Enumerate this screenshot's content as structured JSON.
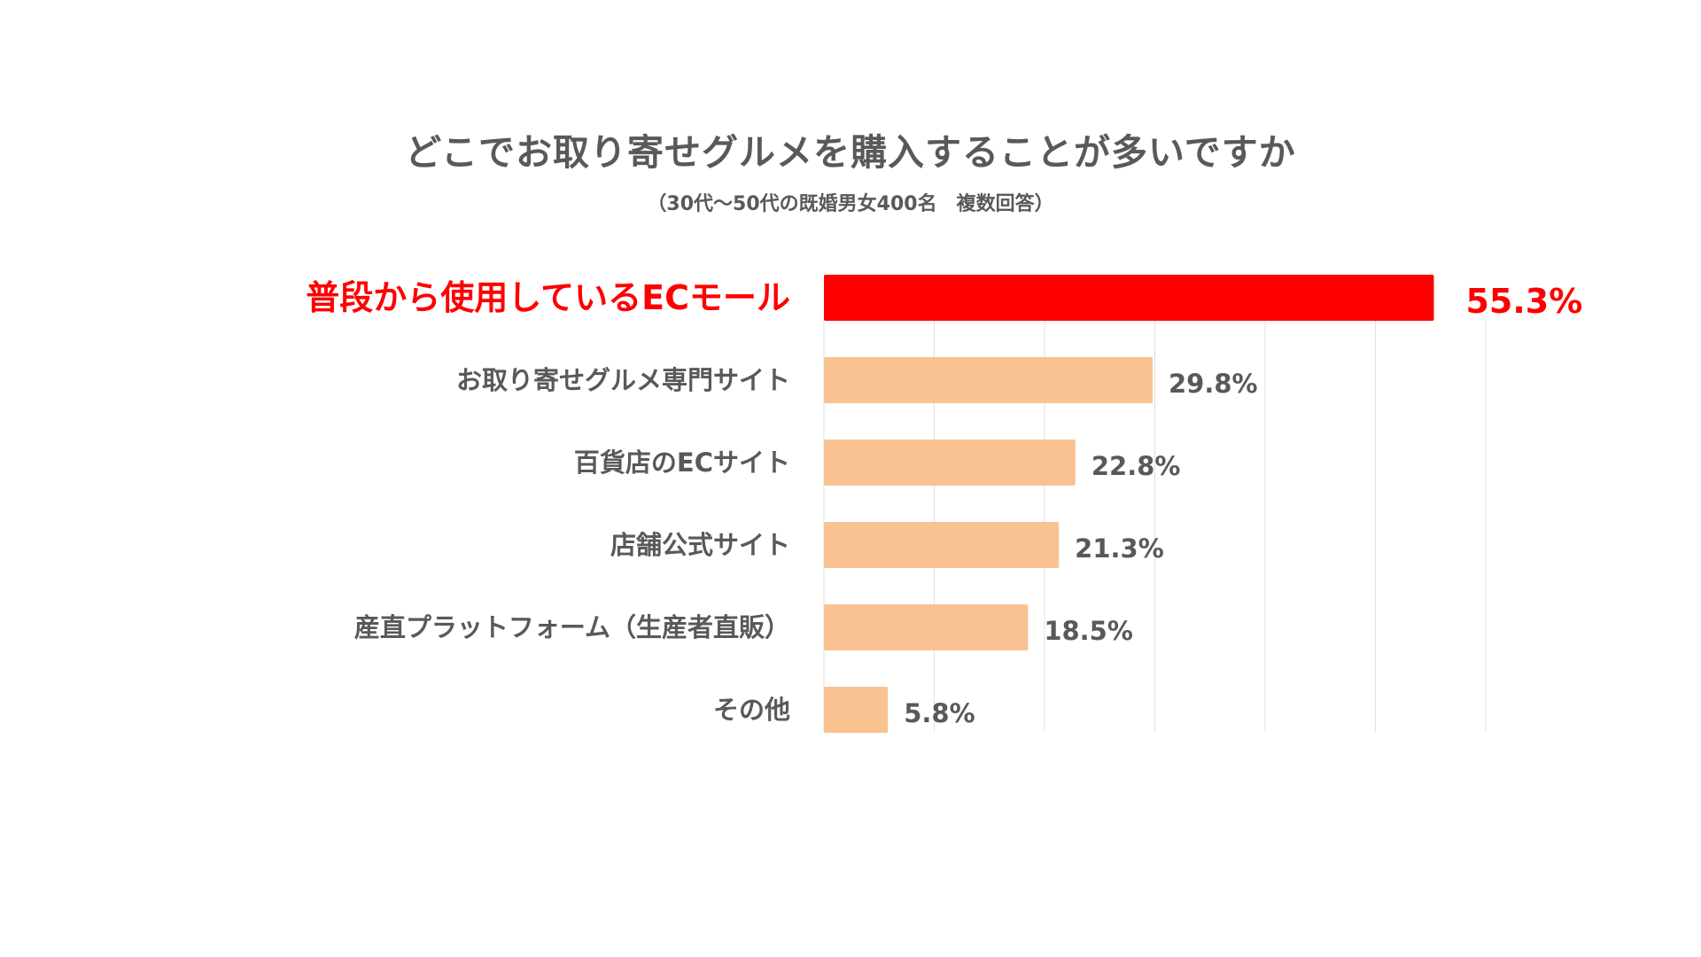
{
  "title": "どこでお取り寄せグルメを購入することが多いですか",
  "subtitle": "（30代〜50代の既婚男女400名　複数回答）",
  "colors": {
    "highlight": "#ff0000",
    "bar": "#f8c291",
    "label": "#595959",
    "grid": "#e0e0e0"
  },
  "chart_data": {
    "type": "bar",
    "orientation": "horizontal",
    "title": "どこでお取り寄せグルメを購入することが多いですか",
    "subtitle": "（30代〜50代の既婚男女400名　複数回答）",
    "categories": [
      "普段から使用しているECモール",
      "お取り寄せグルメ専門サイト",
      "百貨店のECサイト",
      "店舗公式サイト",
      "産直プラットフォーム（生産者直販）",
      "その他"
    ],
    "values": [
      55.3,
      29.8,
      22.8,
      21.3,
      18.5,
      5.8
    ],
    "value_labels": [
      "55.3%",
      "29.8%",
      "22.8%",
      "21.3%",
      "18.5%",
      "5.8%"
    ],
    "highlight_index": 0,
    "xlim": [
      0,
      60
    ],
    "grid": true,
    "legend": "none"
  }
}
